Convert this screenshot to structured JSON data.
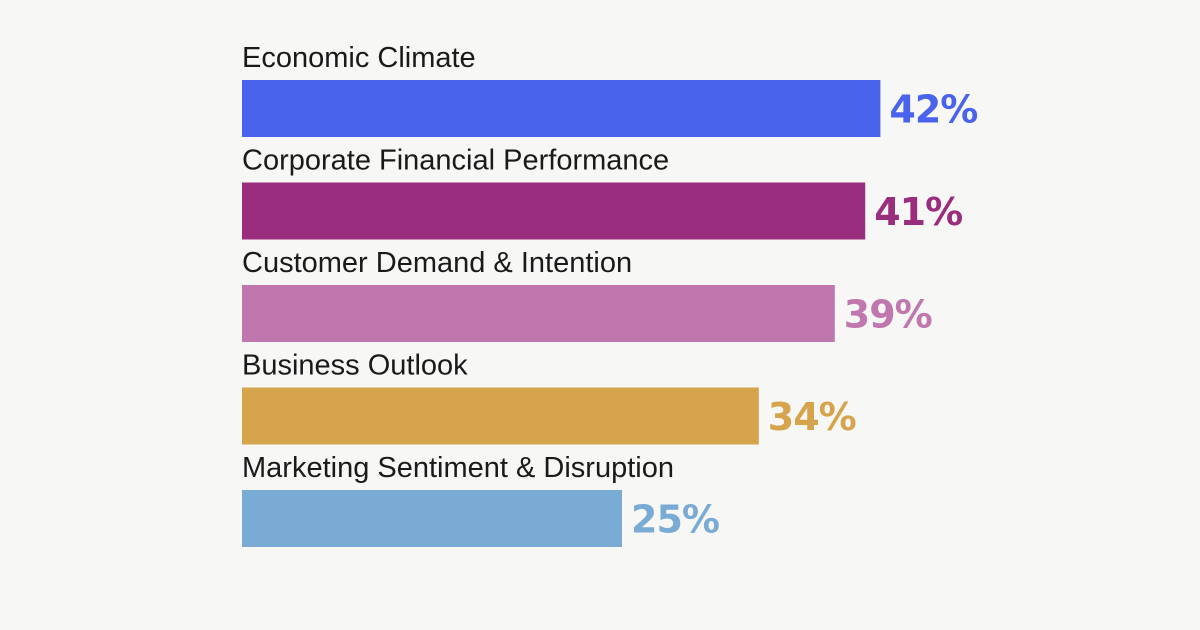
{
  "chart_data": {
    "type": "bar",
    "orientation": "horizontal",
    "categories": [
      "Economic Climate",
      "Corporate Financial Performance",
      "Customer Demand & Intention",
      "Business Outlook",
      "Marketing Sentiment & Disruption"
    ],
    "values": [
      42,
      41,
      39,
      34,
      25
    ],
    "value_labels": [
      "42%",
      "41%",
      "39%",
      "34%",
      "25%"
    ],
    "colors": [
      "#4a63ec",
      "#9a2d7d",
      "#c077ae",
      "#d6a44c",
      "#79abd4"
    ],
    "unit": "%",
    "grid": false,
    "legend": "none"
  }
}
